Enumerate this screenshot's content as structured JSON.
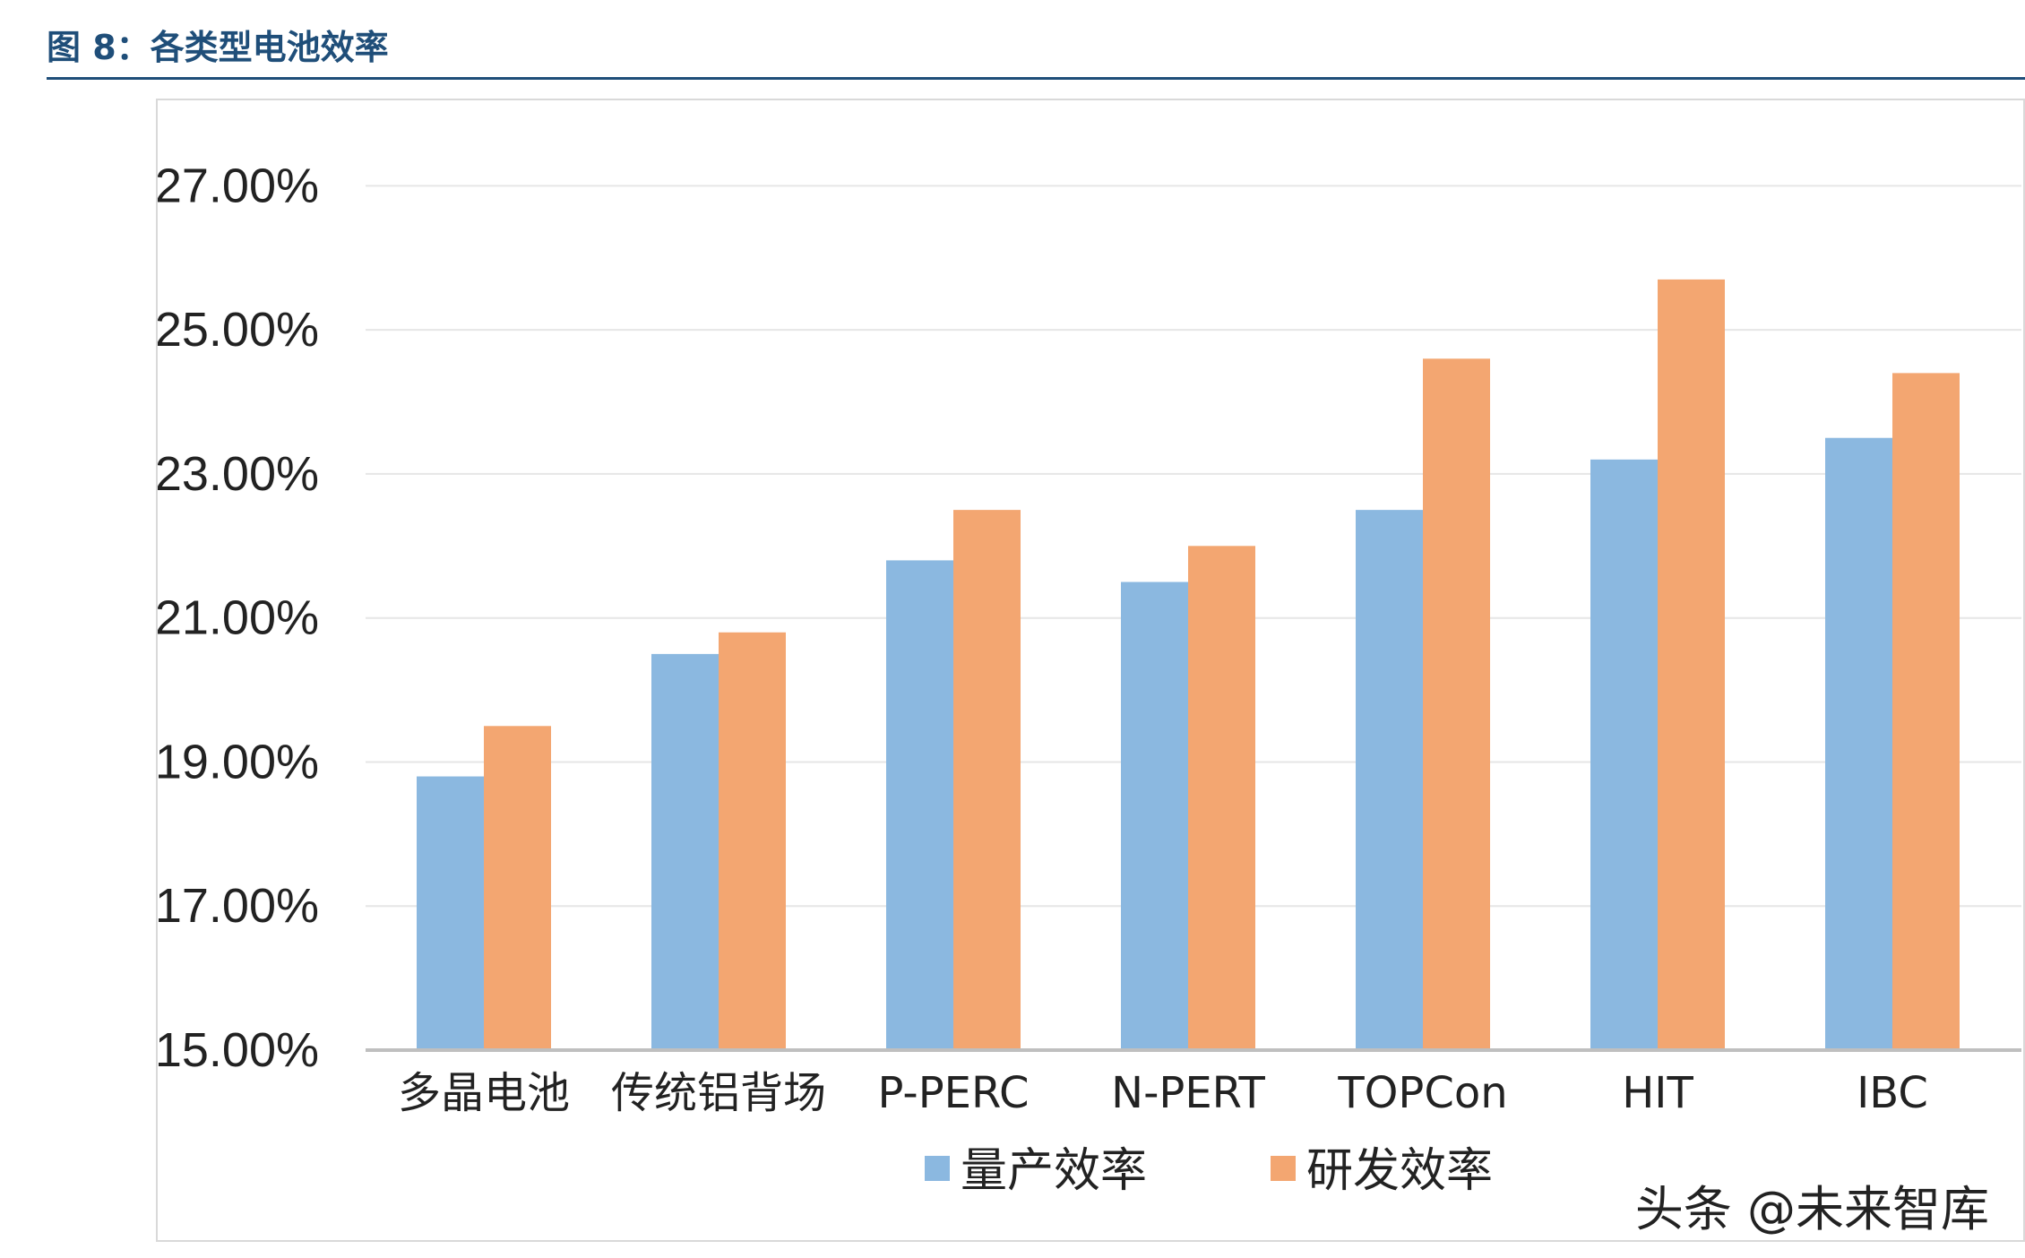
{
  "figure": {
    "title": "图 8：各类型电池效率"
  },
  "watermark": "头条 @未来智库",
  "chart_data": {
    "type": "bar",
    "title": "",
    "xlabel": "",
    "ylabel": "",
    "categories": [
      "多晶电池",
      "传统铝背场",
      "P-PERC",
      "N-PERT",
      "TOPCon",
      "HIT",
      "IBC"
    ],
    "series": [
      {
        "name": "量产效率",
        "color": "#8bb8e0",
        "values": [
          18.8,
          20.5,
          21.8,
          21.5,
          22.5,
          23.2,
          23.5
        ]
      },
      {
        "name": "研发效率",
        "color": "#f3a671",
        "values": [
          19.5,
          20.8,
          22.5,
          22.0,
          24.6,
          25.7,
          24.4
        ]
      }
    ],
    "ylim": [
      15,
      28
    ],
    "yticks": [
      "27.00%",
      "25.00%",
      "23.00%",
      "21.00%",
      "19.00%",
      "17.00%",
      "15.00%"
    ],
    "ytick_values": [
      27,
      25,
      23,
      21,
      19,
      17,
      15
    ],
    "grid": true,
    "legend_position": "bottom"
  }
}
